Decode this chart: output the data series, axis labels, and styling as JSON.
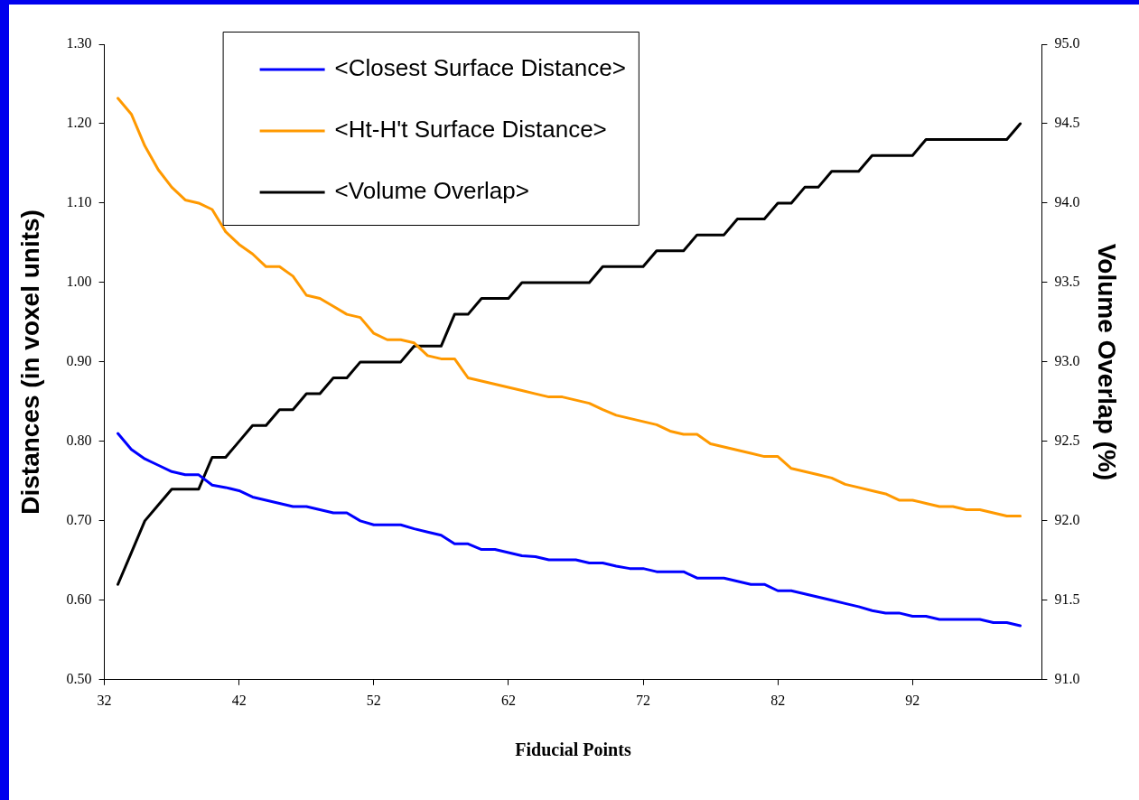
{
  "chart_data": {
    "type": "line",
    "xlabel": "Fiducial Points",
    "ylabel": "Distances (in voxel units)",
    "y2label": "Volume Overlap (%)",
    "x": [
      33,
      34,
      35,
      36,
      37,
      38,
      39,
      40,
      41,
      42,
      43,
      44,
      45,
      46,
      47,
      48,
      49,
      50,
      51,
      52,
      53,
      54,
      55,
      56,
      57,
      58,
      59,
      60,
      61,
      62,
      63,
      64,
      65,
      66,
      67,
      68,
      69,
      70,
      71,
      72,
      73,
      74,
      75,
      76,
      77,
      78,
      79,
      80,
      81,
      82,
      83,
      84,
      85,
      86,
      87,
      88,
      89,
      90,
      91,
      92,
      93,
      94,
      95,
      96,
      97,
      98,
      99,
      100
    ],
    "xlim": [
      32,
      101.6
    ],
    "xticks": [
      32,
      42,
      52,
      62,
      72,
      82,
      92
    ],
    "ylim": [
      0.5,
      1.3
    ],
    "yticks": [
      {
        "value": 0.5,
        "label": "0.50"
      },
      {
        "value": 0.6,
        "label": "0.60"
      },
      {
        "value": 0.7,
        "label": "0.70"
      },
      {
        "value": 0.8,
        "label": "0.80"
      },
      {
        "value": 0.9,
        "label": "0.90"
      },
      {
        "value": 1.0,
        "label": "1.00"
      },
      {
        "value": 1.1,
        "label": "1.10"
      },
      {
        "value": 1.2,
        "label": "1.20"
      },
      {
        "value": 1.3,
        "label": "1.30"
      }
    ],
    "y2lim": [
      91,
      95
    ],
    "y2ticks": [
      {
        "value": 91,
        "label": "91.0"
      },
      {
        "value": 91.5,
        "label": "91.5"
      },
      {
        "value": 92,
        "label": "92.0"
      },
      {
        "value": 92.5,
        "label": "92.5"
      },
      {
        "value": 93,
        "label": "93.0"
      },
      {
        "value": 93.5,
        "label": "93.5"
      },
      {
        "value": 94,
        "label": "94.0"
      },
      {
        "value": 94.5,
        "label": "94.5"
      },
      {
        "value": 95,
        "label": "95.0"
      }
    ],
    "legend": "top",
    "marker": "none",
    "line_style": "solid",
    "series": [
      {
        "name": "<Closest Surface Distance>",
        "color": "#0000ff",
        "values": [
          0.81,
          0.79,
          0.778,
          0.77,
          0.762,
          0.758,
          0.758,
          0.745,
          0.742,
          0.738,
          0.73,
          0.726,
          0.722,
          0.718,
          0.718,
          0.714,
          0.71,
          0.71,
          0.7,
          0.695,
          0.695,
          0.695,
          0.69,
          0.686,
          0.682,
          0.671,
          0.671,
          0.664,
          0.664,
          0.66,
          0.656,
          0.655,
          0.651,
          0.651,
          0.651,
          0.647,
          0.647,
          0.643,
          0.64,
          0.64,
          0.636,
          0.636,
          0.636,
          0.628,
          0.628,
          0.628,
          0.624,
          0.62,
          0.62,
          0.612,
          0.612,
          0.608,
          0.604,
          0.6,
          0.596,
          0.592,
          0.587,
          0.584,
          0.584,
          0.58,
          0.58,
          0.576,
          0.576,
          0.576,
          0.576,
          0.572,
          0.572,
          0.568
        ]
      },
      {
        "name": "<Ht-H't Surface Distance>",
        "color": "#ff9900",
        "values": [
          1.232,
          1.212,
          1.172,
          1.142,
          1.12,
          1.104,
          1.1,
          1.092,
          1.064,
          1.048,
          1.036,
          1.02,
          1.02,
          1.008,
          0.984,
          0.98,
          0.97,
          0.96,
          0.956,
          0.936,
          0.928,
          0.928,
          0.924,
          0.908,
          0.904,
          0.904,
          0.88,
          0.876,
          0.872,
          0.868,
          0.864,
          0.86,
          0.856,
          0.856,
          0.852,
          0.848,
          0.84,
          0.833,
          0.829,
          0.825,
          0.821,
          0.813,
          0.809,
          0.809,
          0.797,
          0.793,
          0.789,
          0.785,
          0.781,
          0.781,
          0.766,
          0.762,
          0.758,
          0.754,
          0.746,
          0.742,
          0.738,
          0.734,
          0.726,
          0.726,
          0.722,
          0.718,
          0.718,
          0.714,
          0.714,
          0.71,
          0.706,
          0.706
        ]
      },
      {
        "name": "<Volume Overlap>",
        "color": "#000000",
        "axis": "y2",
        "values": [
          91.6,
          91.8,
          92.0,
          92.1,
          92.2,
          92.2,
          92.2,
          92.4,
          92.4,
          92.5,
          92.6,
          92.6,
          92.7,
          92.7,
          92.8,
          92.8,
          92.9,
          92.9,
          93.0,
          93.0,
          93.0,
          93.0,
          93.1,
          93.1,
          93.1,
          93.3,
          93.3,
          93.4,
          93.4,
          93.4,
          93.5,
          93.5,
          93.5,
          93.5,
          93.5,
          93.5,
          93.6,
          93.6,
          93.6,
          93.6,
          93.7,
          93.7,
          93.7,
          93.8,
          93.8,
          93.8,
          93.9,
          93.9,
          93.9,
          94.0,
          94.0,
          94.1,
          94.1,
          94.2,
          94.2,
          94.2,
          94.3,
          94.3,
          94.3,
          94.3,
          94.4,
          94.4,
          94.4,
          94.4,
          94.4,
          94.4,
          94.4,
          94.5
        ]
      }
    ]
  }
}
